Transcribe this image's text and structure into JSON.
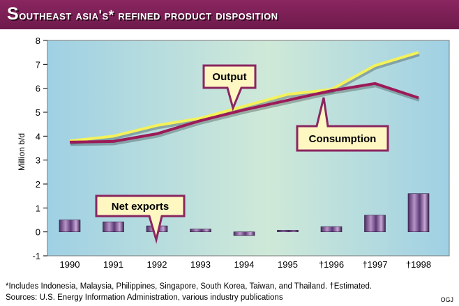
{
  "title": {
    "first_letter": "S",
    "rest": "outheast asia's* refined product disposition"
  },
  "footnote": "*Includes Indonesia, Malaysia, Philippines, Singapore, South Korea, Taiwan, and Thailand. †Estimated.",
  "source": "Sources: U.S. Energy Information Administration, various industry publications",
  "credit": "OGJ",
  "colors": {
    "title_bar": "#7a1f55",
    "output_line": "#f4f25a",
    "consumption_line": "#9c1a58",
    "bar": "#8e6aa0",
    "callout_fill": "#fff7c2",
    "callout_border": "#8a2660"
  },
  "chart_data": {
    "type": "line",
    "x": [
      "1990",
      "1991",
      "1992",
      "1993",
      "1994",
      "1995",
      "†1996",
      "†1997",
      "†1998"
    ],
    "ylabel": "Million b/d",
    "ylim": [
      -1,
      8
    ],
    "yticks": [
      "-1",
      "0",
      "1",
      "2",
      "3",
      "4",
      "5",
      "6",
      "7",
      "8"
    ],
    "grid": false,
    "series": [
      {
        "name": "Output",
        "type": "line",
        "values": [
          3.8,
          4.0,
          4.45,
          4.75,
          5.25,
          5.75,
          5.95,
          6.95,
          7.5
        ]
      },
      {
        "name": "Consumption",
        "type": "line",
        "values": [
          3.75,
          3.78,
          4.1,
          4.65,
          5.1,
          5.5,
          5.9,
          6.2,
          5.6
        ]
      },
      {
        "name": "Net exports",
        "type": "bar",
        "values": [
          0.5,
          0.42,
          0.25,
          0.12,
          -0.15,
          0.07,
          0.22,
          0.7,
          1.6
        ]
      }
    ],
    "annotations": [
      "Output",
      "Consumption",
      "Net exports"
    ]
  }
}
